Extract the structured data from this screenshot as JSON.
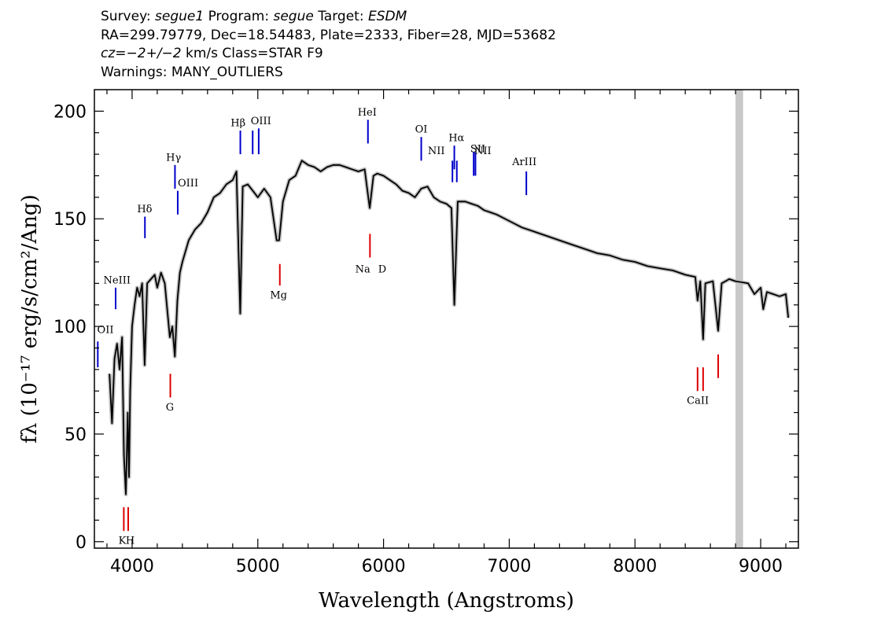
{
  "header": {
    "line1": {
      "survey_key": "Survey:",
      "survey_val": "segue1",
      "program_key": "Program:",
      "program_val": "segue",
      "target_key": "Target:",
      "target_val": "ESDM"
    },
    "line2": "RA=299.79779, Dec=18.54483, Plate=2333, Fiber=28, MJD=53682",
    "line3": {
      "cz_val": "cz=−2+/−2",
      "cz_unit": "km/s",
      "class": "Class=STAR F9"
    },
    "line4": "Warnings: MANY_OUTLIERS"
  },
  "chart_data": {
    "type": "line",
    "xlabel": "Wavelength (Angstroms)",
    "ylabel": "fλ (10⁻¹⁷ erg/s/cm²/Ang)",
    "xlim": [
      3700,
      9300
    ],
    "ylim": [
      -3,
      210
    ],
    "xticks": [
      4000,
      5000,
      6000,
      7000,
      8000,
      9000
    ],
    "yticks": [
      0,
      50,
      100,
      150,
      200
    ],
    "masked_band": [
      8800,
      8860
    ],
    "series": [
      {
        "values_xy": [
          [
            3820,
            78
          ],
          [
            3840,
            55
          ],
          [
            3860,
            85
          ],
          [
            3880,
            92
          ],
          [
            3900,
            80
          ],
          [
            3920,
            95
          ],
          [
            3935,
            40
          ],
          [
            3950,
            22
          ],
          [
            3965,
            60
          ],
          [
            3975,
            30
          ],
          [
            3985,
            70
          ],
          [
            4000,
            100
          ],
          [
            4020,
            110
          ],
          [
            4040,
            118
          ],
          [
            4060,
            114
          ],
          [
            4080,
            120
          ],
          [
            4100,
            82
          ],
          [
            4120,
            120
          ],
          [
            4150,
            122
          ],
          [
            4180,
            124
          ],
          [
            4200,
            118
          ],
          [
            4230,
            125
          ],
          [
            4260,
            120
          ],
          [
            4300,
            95
          ],
          [
            4320,
            100
          ],
          [
            4340,
            86
          ],
          [
            4360,
            112
          ],
          [
            4380,
            125
          ],
          [
            4400,
            130
          ],
          [
            4450,
            140
          ],
          [
            4500,
            145
          ],
          [
            4550,
            148
          ],
          [
            4600,
            153
          ],
          [
            4650,
            160
          ],
          [
            4700,
            162
          ],
          [
            4750,
            166
          ],
          [
            4800,
            168
          ],
          [
            4830,
            172
          ],
          [
            4860,
            106
          ],
          [
            4880,
            165
          ],
          [
            4920,
            166
          ],
          [
            4960,
            163
          ],
          [
            5000,
            160
          ],
          [
            5050,
            164
          ],
          [
            5100,
            160
          ],
          [
            5150,
            140
          ],
          [
            5170,
            140
          ],
          [
            5200,
            158
          ],
          [
            5250,
            168
          ],
          [
            5300,
            170
          ],
          [
            5350,
            177
          ],
          [
            5400,
            175
          ],
          [
            5450,
            174
          ],
          [
            5500,
            172
          ],
          [
            5550,
            174
          ],
          [
            5600,
            175
          ],
          [
            5650,
            175
          ],
          [
            5700,
            174
          ],
          [
            5750,
            173
          ],
          [
            5800,
            172
          ],
          [
            5850,
            173
          ],
          [
            5890,
            155
          ],
          [
            5920,
            170
          ],
          [
            5950,
            171
          ],
          [
            6000,
            170
          ],
          [
            6050,
            168
          ],
          [
            6100,
            166
          ],
          [
            6150,
            163
          ],
          [
            6200,
            162
          ],
          [
            6250,
            160
          ],
          [
            6300,
            164
          ],
          [
            6350,
            165
          ],
          [
            6400,
            160
          ],
          [
            6450,
            158
          ],
          [
            6500,
            157
          ],
          [
            6540,
            155
          ],
          [
            6563,
            110
          ],
          [
            6590,
            158
          ],
          [
            6650,
            158
          ],
          [
            6700,
            157
          ],
          [
            6750,
            156
          ],
          [
            6800,
            154
          ],
          [
            6850,
            153
          ],
          [
            6900,
            152
          ],
          [
            7000,
            149
          ],
          [
            7100,
            146
          ],
          [
            7200,
            144
          ],
          [
            7300,
            142
          ],
          [
            7400,
            140
          ],
          [
            7500,
            138
          ],
          [
            7600,
            136
          ],
          [
            7700,
            134
          ],
          [
            7800,
            133
          ],
          [
            7900,
            131
          ],
          [
            8000,
            130
          ],
          [
            8100,
            128
          ],
          [
            8200,
            127
          ],
          [
            8300,
            126
          ],
          [
            8400,
            124
          ],
          [
            8480,
            123
          ],
          [
            8498,
            112
          ],
          [
            8520,
            121
          ],
          [
            8542,
            94
          ],
          [
            8560,
            120
          ],
          [
            8620,
            121
          ],
          [
            8662,
            98
          ],
          [
            8690,
            120
          ],
          [
            8750,
            122
          ],
          [
            8800,
            121
          ],
          [
            8900,
            120
          ],
          [
            8950,
            115
          ],
          [
            9000,
            118
          ],
          [
            9020,
            108
          ],
          [
            9050,
            116
          ],
          [
            9100,
            115
          ],
          [
            9150,
            114
          ],
          [
            9200,
            115
          ],
          [
            9220,
            104
          ]
        ]
      }
    ],
    "lines_blue": [
      {
        "name": "OII",
        "x": 3727,
        "y0": 81,
        "y1": 93
      },
      {
        "name": "NeIII",
        "x": 3869,
        "y0": 108,
        "y1": 118
      },
      {
        "name": "Hδ",
        "x": 4102,
        "y0": 141,
        "y1": 151
      },
      {
        "name": "Hγ",
        "x": 4341,
        "y0": 164,
        "y1": 175
      },
      {
        "name": "OIII",
        "x": 4363,
        "y0": 152,
        "y1": 163
      },
      {
        "name": "Hβ",
        "x": 4861,
        "y0": 180,
        "y1": 191
      },
      {
        "name": "OIII",
        "x": 4959,
        "y0": 180,
        "y1": 191
      },
      {
        "name": "OIII",
        "x": 5007,
        "y0": 180,
        "y1": 192
      },
      {
        "name": "HeI",
        "x": 5876,
        "y0": 185,
        "y1": 196
      },
      {
        "name": "OI",
        "x": 6300,
        "y0": 177,
        "y1": 188
      },
      {
        "name": "NII",
        "x": 6548,
        "y0": 167,
        "y1": 177
      },
      {
        "name": "Hα",
        "x": 6563,
        "y0": 173,
        "y1": 184
      },
      {
        "name": "NII",
        "x": 6583,
        "y0": 167,
        "y1": 177
      },
      {
        "name": "SII",
        "x": 6717,
        "y0": 170,
        "y1": 181
      },
      {
        "name": "SII",
        "x": 6731,
        "y0": 170,
        "y1": 181
      },
      {
        "name": "ArIII",
        "x": 7136,
        "y0": 161,
        "y1": 172
      }
    ],
    "lines_red": [
      {
        "name": "K",
        "x": 3934,
        "y0": 5,
        "y1": 16
      },
      {
        "name": "H",
        "x": 3969,
        "y0": 5,
        "y1": 16
      },
      {
        "name": "G",
        "x": 4304,
        "y0": 67,
        "y1": 78
      },
      {
        "name": "Mg",
        "x": 5175,
        "y0": 119,
        "y1": 129
      },
      {
        "name": "Na",
        "x": 5892,
        "y0": 132,
        "y1": 143
      },
      {
        "name": "CaII",
        "x": 8498,
        "y0": 70,
        "y1": 81
      },
      {
        "name": "CaII",
        "x": 8542,
        "y0": 70,
        "y1": 81
      },
      {
        "name": "CaII",
        "x": 8662,
        "y0": 76,
        "y1": 87
      }
    ],
    "labels": [
      {
        "text": "OII",
        "x": 3727,
        "y": 97
      },
      {
        "text": "NeIII",
        "x": 3880,
        "y": 120
      },
      {
        "text": "Hδ",
        "x": 4100,
        "y": 153
      },
      {
        "text": "Hγ",
        "x": 4330,
        "y": 177
      },
      {
        "text": "OIII",
        "x": 4445,
        "y": 165
      },
      {
        "text": "Hβ",
        "x": 4843,
        "y": 193
      },
      {
        "text": "OIII",
        "x": 5025,
        "y": 194
      },
      {
        "text": "HeI",
        "x": 5870,
        "y": 198
      },
      {
        "text": "OI",
        "x": 6300,
        "y": 190
      },
      {
        "text": "NII",
        "x": 6420,
        "y": 180
      },
      {
        "text": "Hα",
        "x": 6580,
        "y": 186
      },
      {
        "text": "NII",
        "x": 6790,
        "y": 180
      },
      {
        "text": "SII",
        "x": 6750,
        "y": 181
      },
      {
        "text": "ArIII",
        "x": 7120,
        "y": 175
      },
      {
        "text": "Mg",
        "x": 5165,
        "y": 113
      },
      {
        "text": "Na",
        "x": 5835,
        "y": 125
      },
      {
        "text": "D",
        "x": 5990,
        "y": 125
      },
      {
        "text": "G",
        "x": 4300,
        "y": 61
      },
      {
        "text": "CaII",
        "x": 8500,
        "y": 64
      },
      {
        "text": "K",
        "x": 3922,
        "y": -1
      },
      {
        "text": "H",
        "x": 3985,
        "y": -1
      }
    ],
    "colors": {
      "spectrum": "#000000",
      "error_band": "#bfbfbf",
      "emission": "#0000cc",
      "absorption": "#dd0000",
      "mask": "#c8c8c8"
    }
  }
}
